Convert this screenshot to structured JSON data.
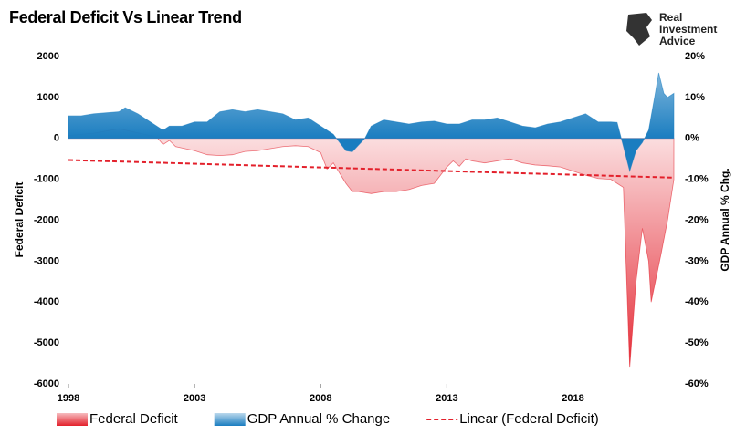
{
  "logo": [
    "Real",
    "Investment",
    "Advice"
  ],
  "chart_data": {
    "type": "area",
    "title": "Federal Deficit Vs Linear Trend",
    "y_label": "Federal Deficit",
    "y2_label": "GDP Annual % Chg.",
    "xlim": [
      1998,
      2022
    ],
    "xticks": [
      1998,
      2003,
      2008,
      2013,
      2018
    ],
    "ylim": [
      -6000,
      2000
    ],
    "yticks": [
      2000,
      1000,
      0,
      -1000,
      -2000,
      -3000,
      -4000,
      -5000,
      -6000
    ],
    "y2lim": [
      -60,
      20
    ],
    "y2ticks": [
      {
        "value": 20,
        "label": "20%"
      },
      {
        "value": 10,
        "label": "10%"
      },
      {
        "value": 0,
        "label": "0%"
      },
      {
        "value": -10,
        "label": "-10%"
      },
      {
        "value": -20,
        "label": "-20%"
      },
      {
        "value": -30,
        "label": "-30%"
      },
      {
        "value": -40,
        "label": "-40%"
      },
      {
        "value": -50,
        "label": "-50%"
      },
      {
        "value": -60,
        "label": "-60%"
      }
    ],
    "grid": false,
    "series": [
      {
        "name": "Federal Deficit",
        "color": "#e3202b",
        "x": [
          1998,
          1999,
          2000,
          2001,
          2001.5,
          2001.75,
          2002,
          2002.25,
          2003,
          2003.5,
          2004,
          2004.5,
          2005,
          2005.5,
          2006,
          2006.5,
          2007,
          2007.5,
          2008,
          2008.25,
          2008.5,
          2009,
          2009.25,
          2009.5,
          2010,
          2010.5,
          2011,
          2011.5,
          2012,
          2012.5,
          2013,
          2013.25,
          2013.5,
          2013.75,
          2014,
          2014.5,
          2015,
          2015.5,
          2016,
          2016.5,
          2017,
          2017.5,
          2018,
          2018.5,
          2019,
          2019.5,
          2019.75,
          2020,
          2020.25,
          2020.5,
          2020.75,
          2021,
          2021.1,
          2021.5,
          2021.75,
          2022
        ],
        "values": [
          70,
          125,
          236,
          100,
          30,
          -150,
          -50,
          -200,
          -300,
          -400,
          -420,
          -400,
          -320,
          -300,
          -250,
          -200,
          -180,
          -200,
          -350,
          -750,
          -600,
          -1100,
          -1300,
          -1300,
          -1350,
          -1300,
          -1300,
          -1250,
          -1150,
          -1100,
          -700,
          -550,
          -680,
          -500,
          -550,
          -600,
          -550,
          -500,
          -600,
          -650,
          -670,
          -700,
          -800,
          -900,
          -980,
          -1000,
          -1100,
          -1200,
          -5600,
          -3500,
          -2200,
          -3000,
          -4000,
          -2800,
          -2000,
          -1000
        ]
      },
      {
        "name": "GDP Annual % Change",
        "color": "#1a7dc0",
        "axis": "y2",
        "x": [
          1998,
          1998.5,
          1999,
          2000,
          2000.25,
          2000.75,
          2001.25,
          2001.75,
          2002,
          2002.5,
          2003,
          2003.5,
          2004,
          2004.5,
          2005,
          2005.5,
          2006,
          2006.5,
          2007,
          2007.5,
          2008,
          2008.5,
          2009,
          2009.25,
          2009.75,
          2010,
          2010.5,
          2011,
          2011.5,
          2012,
          2012.5,
          2013,
          2013.5,
          2014,
          2014.5,
          2015,
          2015.5,
          2016,
          2016.5,
          2017,
          2017.5,
          2018,
          2018.5,
          2019,
          2019.5,
          2019.75,
          2020,
          2020.25,
          2020.5,
          2020.75,
          2021,
          2021.25,
          2021.4,
          2021.6,
          2021.75,
          2022
        ],
        "values": [
          5.5,
          5.5,
          6,
          6.5,
          7.5,
          6,
          4,
          2,
          3,
          3,
          4,
          4,
          6.5,
          7,
          6.5,
          7,
          6.5,
          6,
          4.5,
          5,
          3,
          1,
          -3,
          -3.3,
          0,
          3,
          4.5,
          4,
          3.5,
          4,
          4.2,
          3.5,
          3.5,
          4.5,
          4.5,
          5,
          4,
          3,
          2.6,
          3.5,
          4,
          5,
          6,
          4,
          4,
          3.9,
          -2,
          -8,
          -3,
          -1,
          2,
          10.5,
          16,
          11,
          10,
          11
        ]
      },
      {
        "name": "Linear (Federal Deficit)",
        "color": "#e3202b",
        "line_style": "dashed",
        "x": [
          1998,
          2022
        ],
        "values": [
          -530,
          -960
        ]
      }
    ]
  }
}
